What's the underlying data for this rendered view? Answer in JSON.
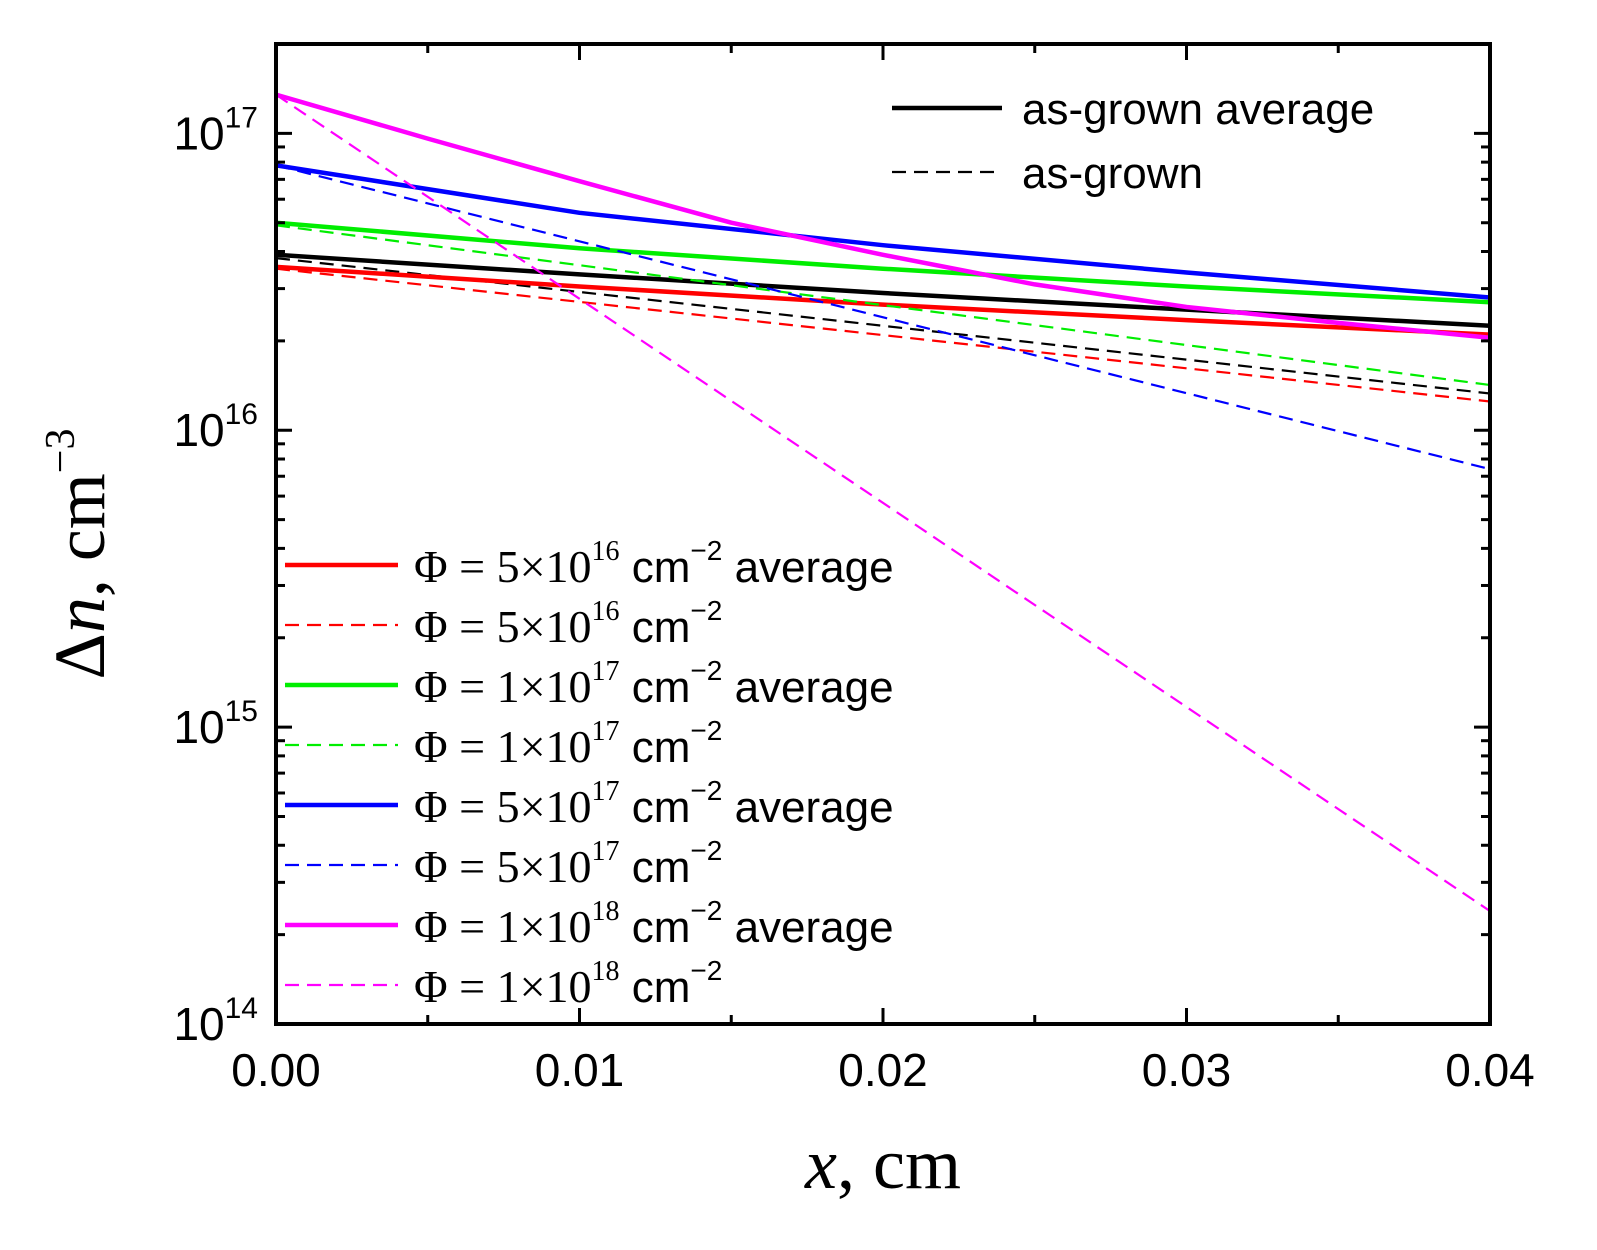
{
  "chart_data": {
    "type": "line",
    "xlabel": "x, cm",
    "ylabel_main": "Δn, cm",
    "ylabel_exp": "−3",
    "xlim": [
      0,
      0.04
    ],
    "ylim": [
      100000000000000.0,
      2e+17
    ],
    "yscale": "log",
    "x_ticks": [
      0.0,
      0.01,
      0.02,
      0.03,
      0.04
    ],
    "x_tick_labels": [
      "0.00",
      "0.01",
      "0.02",
      "0.03",
      "0.04"
    ],
    "y_ticks": [
      {
        "value": 100000000000000.0,
        "base": "10",
        "exp": "14"
      },
      {
        "value": 1000000000000000.0,
        "base": "10",
        "exp": "15"
      },
      {
        "value": 1e+16,
        "base": "10",
        "exp": "16"
      },
      {
        "value": 1e+17,
        "base": "10",
        "exp": "17"
      }
    ],
    "series": [
      {
        "name": "as-grown average",
        "color": "#000000",
        "dash": false,
        "points": [
          [
            0,
            3.9e+16
          ],
          [
            0.01,
            3.35e+16
          ],
          [
            0.02,
            2.9e+16
          ],
          [
            0.03,
            2.55e+16
          ],
          [
            0.04,
            2.25e+16
          ]
        ]
      },
      {
        "name": "as-grown",
        "color": "#000000",
        "dash": true,
        "points": [
          [
            0,
            3.8e+16
          ],
          [
            0.04,
            1.33e+16
          ]
        ]
      },
      {
        "name": "Φ = 5×10^16 cm^−2 average",
        "color": "#ff0000",
        "dash": false,
        "points": [
          [
            0,
            3.55e+16
          ],
          [
            0.01,
            3.05e+16
          ],
          [
            0.02,
            2.65e+16
          ],
          [
            0.03,
            2.35e+16
          ],
          [
            0.04,
            2.1e+16
          ]
        ]
      },
      {
        "name": "Φ = 5×10^16 cm^−2",
        "color": "#ff0000",
        "dash": true,
        "points": [
          [
            0,
            3.5e+16
          ],
          [
            0.04,
            1.25e+16
          ]
        ]
      },
      {
        "name": "Φ = 1×10^17 cm^−2 average",
        "color": "#00ee00",
        "dash": false,
        "points": [
          [
            0,
            5e+16
          ],
          [
            0.01,
            4.1e+16
          ],
          [
            0.02,
            3.5e+16
          ],
          [
            0.03,
            3.05e+16
          ],
          [
            0.04,
            2.7e+16
          ]
        ]
      },
      {
        "name": "Φ = 1×10^17 cm^−2",
        "color": "#00ee00",
        "dash": true,
        "points": [
          [
            0,
            4.9e+16
          ],
          [
            0.04,
            1.42e+16
          ]
        ]
      },
      {
        "name": "Φ = 5×10^17 cm^−2 average",
        "color": "#0000ff",
        "dash": false,
        "points": [
          [
            0,
            7.8e+16
          ],
          [
            0.01,
            5.4e+16
          ],
          [
            0.02,
            4.2e+16
          ],
          [
            0.03,
            3.4e+16
          ],
          [
            0.04,
            2.8e+16
          ]
        ]
      },
      {
        "name": "Φ = 5×10^17 cm^−2",
        "color": "#0000ff",
        "dash": true,
        "points": [
          [
            0,
            7.8e+16
          ],
          [
            0.04,
            7400000000000000.0
          ]
        ]
      },
      {
        "name": "Φ = 1×10^18 cm^−2 average",
        "color": "#ff00ff",
        "dash": false,
        "points": [
          [
            0,
            1.35e+17
          ],
          [
            0.005,
            9.6e+16
          ],
          [
            0.01,
            6.9e+16
          ],
          [
            0.015,
            5e+16
          ],
          [
            0.02,
            3.9e+16
          ],
          [
            0.025,
            3.1e+16
          ],
          [
            0.03,
            2.6e+16
          ],
          [
            0.035,
            2.3e+16
          ],
          [
            0.04,
            2.05e+16
          ]
        ]
      },
      {
        "name": "Φ = 1×10^18 cm^−2",
        "color": "#ff00ff",
        "dash": true,
        "points": [
          [
            0,
            1.35e+17
          ],
          [
            0.04,
            240000000000000.0
          ]
        ]
      }
    ],
    "legend_top": [
      {
        "label": "as-grown  average",
        "color": "#000000",
        "dash": false
      },
      {
        "label": "as-grown",
        "color": "#000000",
        "dash": true
      }
    ],
    "legend_bottom": [
      {
        "phi": "Φ = 5×10",
        "exp": "16",
        "unit": " cm",
        "unit_exp": "−2",
        "suffix": "  average",
        "color": "#ff0000",
        "dash": false
      },
      {
        "phi": "Φ = 5×10",
        "exp": "16",
        "unit": " cm",
        "unit_exp": "−2",
        "suffix": "",
        "color": "#ff0000",
        "dash": true
      },
      {
        "phi": "Φ = 1×10",
        "exp": "17",
        "unit": " cm",
        "unit_exp": "−2",
        "suffix": " average",
        "color": "#00ee00",
        "dash": false
      },
      {
        "phi": "Φ = 1×10",
        "exp": "17",
        "unit": " cm",
        "unit_exp": "−2",
        "suffix": "",
        "color": "#00ee00",
        "dash": true
      },
      {
        "phi": "Φ = 5×10",
        "exp": "17",
        "unit": " cm",
        "unit_exp": "−2",
        "suffix": " average",
        "color": "#0000ff",
        "dash": false
      },
      {
        "phi": "Φ = 5×10",
        "exp": "17",
        "unit": " cm",
        "unit_exp": "−2",
        "suffix": "",
        "color": "#0000ff",
        "dash": true
      },
      {
        "phi": "Φ = 1×10",
        "exp": "18",
        "unit": " cm",
        "unit_exp": "−2",
        "suffix": " average",
        "color": "#ff00ff",
        "dash": false
      },
      {
        "phi": "Φ = 1×10",
        "exp": "18",
        "unit": " cm",
        "unit_exp": "−2",
        "suffix": "",
        "color": "#ff00ff",
        "dash": true
      }
    ]
  }
}
